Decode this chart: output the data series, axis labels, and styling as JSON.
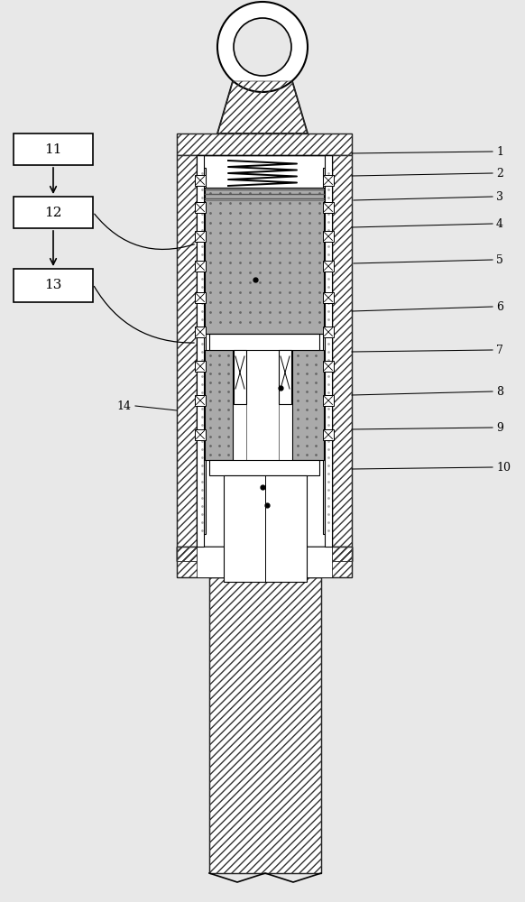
{
  "bg_color": "#e8e8e8",
  "line_color": "#000000",
  "hatch_color": "#333333",
  "mre_color": "#b8a0b8",
  "mrd_color": "#aaaaaa",
  "white_color": "#ffffff",
  "figsize": [
    5.82,
    10.0
  ],
  "dpi": 100
}
